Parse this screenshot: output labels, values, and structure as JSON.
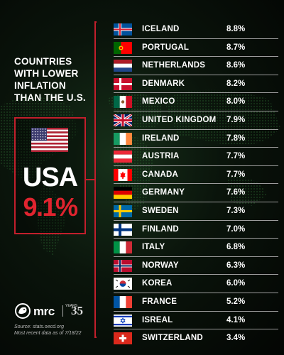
{
  "heading": [
    "COUNTRIES",
    "WITH LOWER",
    "INFLATION",
    "THAN THE U.S."
  ],
  "usa": {
    "name": "USA",
    "rate": "9.1%",
    "flag": "us-flag"
  },
  "accent_color": "#c21f2c",
  "countries": [
    {
      "name": "ICELAND",
      "rate": "8.8%",
      "flag": "iceland"
    },
    {
      "name": "PORTUGAL",
      "rate": "8.7%",
      "flag": "portugal"
    },
    {
      "name": "NETHERLANDS",
      "rate": "8.6%",
      "flag": "netherlands"
    },
    {
      "name": "DENMARK",
      "rate": "8.2%",
      "flag": "denmark"
    },
    {
      "name": "MEXICO",
      "rate": "8.0%",
      "flag": "mexico"
    },
    {
      "name": "UNITED KINGDOM",
      "rate": "7.9%",
      "flag": "uk"
    },
    {
      "name": "IRELAND",
      "rate": "7.8%",
      "flag": "ireland"
    },
    {
      "name": "AUSTRIA",
      "rate": "7.7%",
      "flag": "austria"
    },
    {
      "name": "CANADA",
      "rate": "7.7%",
      "flag": "canada"
    },
    {
      "name": "GERMANY",
      "rate": "7.6%",
      "flag": "germany"
    },
    {
      "name": "SWEDEN",
      "rate": "7.3%",
      "flag": "sweden"
    },
    {
      "name": "FINLAND",
      "rate": "7.0%",
      "flag": "finland"
    },
    {
      "name": "ITALY",
      "rate": "6.8%",
      "flag": "italy"
    },
    {
      "name": "NORWAY",
      "rate": "6.3%",
      "flag": "norway"
    },
    {
      "name": "KOREA",
      "rate": "6.0%",
      "flag": "korea"
    },
    {
      "name": "FRANCE",
      "rate": "5.2%",
      "flag": "france"
    },
    {
      "name": "ISREAL",
      "rate": "4.1%",
      "flag": "israel"
    },
    {
      "name": "SWITZERLAND",
      "rate": "3.4%",
      "flag": "switzerland"
    }
  ],
  "chart_data": {
    "type": "table",
    "title": "COUNTRIES WITH LOWER INFLATION THAN THE U.S.",
    "highlight": {
      "category": "USA",
      "value": 9.1
    },
    "categories": [
      "ICELAND",
      "PORTUGAL",
      "NETHERLANDS",
      "DENMARK",
      "MEXICO",
      "UNITED KINGDOM",
      "IRELAND",
      "AUSTRIA",
      "CANADA",
      "GERMANY",
      "SWEDEN",
      "FINLAND",
      "ITALY",
      "NORWAY",
      "KOREA",
      "FRANCE",
      "ISREAL",
      "SWITZERLAND"
    ],
    "values": [
      8.8,
      8.7,
      8.6,
      8.2,
      8.0,
      7.9,
      7.8,
      7.7,
      7.7,
      7.6,
      7.3,
      7.0,
      6.8,
      6.3,
      6.0,
      5.2,
      4.1,
      3.4
    ]
  },
  "logo": {
    "text": "mrc",
    "years_small": "YEARS",
    "years": "35"
  },
  "source": [
    "Source: stats.oecd.org",
    "Most recent data as of 7/18/22"
  ]
}
